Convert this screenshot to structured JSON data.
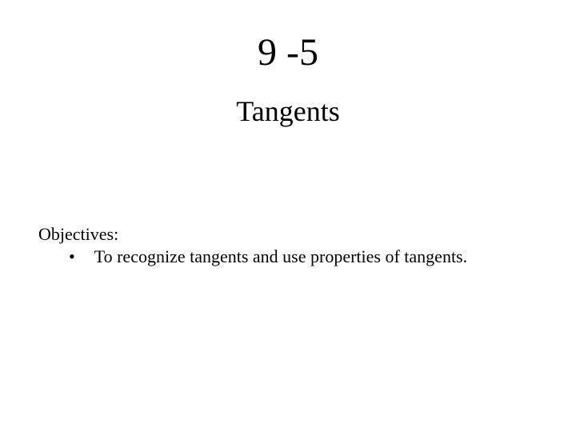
{
  "header": {
    "title": "9 -5",
    "subtitle": "Tangents"
  },
  "objectives": {
    "label": "Objectives:",
    "items": [
      "To recognize tangents and use properties of tangents."
    ]
  },
  "styles": {
    "background_color": "#ffffff",
    "text_color": "#000000",
    "title_fontsize": 48,
    "subtitle_fontsize": 36,
    "body_fontsize": 22,
    "font_family": "Times New Roman"
  }
}
